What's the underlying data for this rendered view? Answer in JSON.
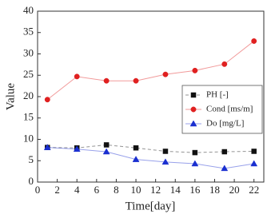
{
  "chart_data": {
    "type": "line",
    "x_label": "Time[day]",
    "y_label": "Value",
    "x": [
      1,
      4,
      7,
      10,
      13,
      16,
      19,
      22
    ],
    "series": [
      {
        "name": "PH [-]",
        "color": "#111111",
        "marker": "square",
        "dash": true,
        "values": [
          8.1,
          8.0,
          8.7,
          8.0,
          7.2,
          6.9,
          7.1,
          7.2
        ]
      },
      {
        "name": "Cond [ms/m]",
        "color": "#e02020",
        "marker": "circle",
        "dash": false,
        "values": [
          19.3,
          24.7,
          23.7,
          23.7,
          25.2,
          26.1,
          27.6,
          33.0
        ]
      },
      {
        "name": "Do [mg/L]",
        "color": "#1a2fd0",
        "marker": "triangle",
        "dash": false,
        "values": [
          8.1,
          7.7,
          7.1,
          5.3,
          4.7,
          4.3,
          3.2,
          4.3
        ]
      }
    ],
    "xlim": [
      0,
      23
    ],
    "xticks": [
      0,
      2,
      4,
      6,
      8,
      10,
      12,
      14,
      16,
      18,
      20,
      22
    ],
    "ylim": [
      0,
      40
    ],
    "yticks": [
      0,
      5,
      10,
      15,
      20,
      25,
      30,
      35,
      40
    ],
    "legend": "right"
  }
}
